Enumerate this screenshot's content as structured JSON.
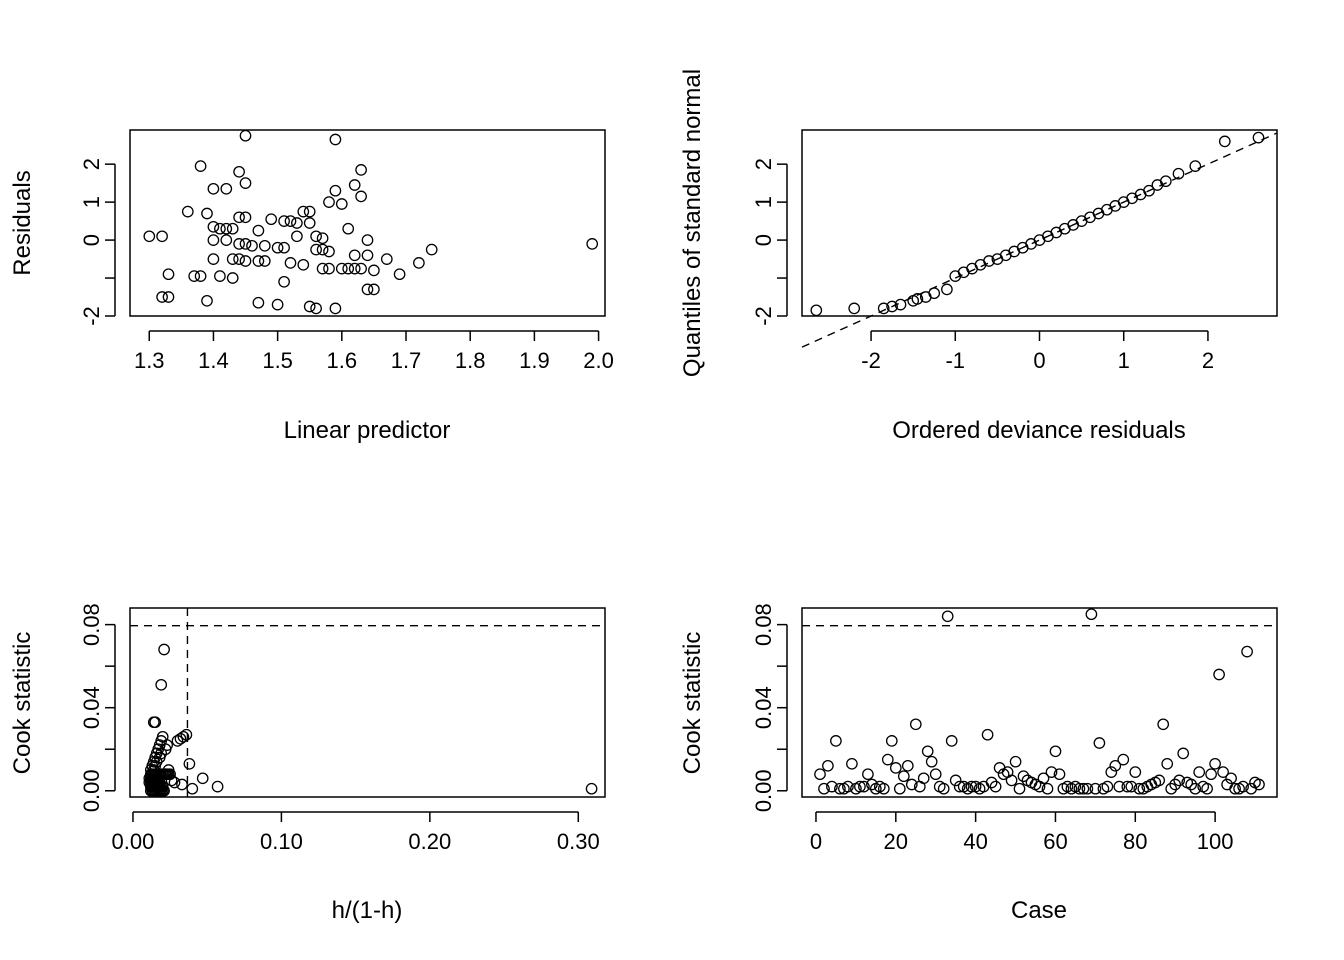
{
  "chart_data": [
    {
      "type": "scatter",
      "title": "",
      "xlabel": "Linear predictor",
      "ylabel": "Residuals",
      "xlim": [
        1.27,
        2.01
      ],
      "ylim": [
        -2.0,
        2.9
      ],
      "xticks": [
        1.3,
        1.4,
        1.5,
        1.6,
        1.7,
        1.8,
        1.9,
        2.0
      ],
      "xtick_labels": [
        "1.3",
        "1.4",
        "1.5",
        "1.6",
        "1.7",
        "1.8",
        "1.9",
        "2.0"
      ],
      "yticks": [
        -2,
        -1,
        0,
        1,
        2
      ],
      "ytick_labels": [
        "-2",
        "",
        "0",
        "1",
        "2"
      ],
      "grid": false,
      "x": [
        1.3,
        1.32,
        1.32,
        1.33,
        1.33,
        1.36,
        1.37,
        1.38,
        1.38,
        1.39,
        1.39,
        1.4,
        1.4,
        1.4,
        1.4,
        1.41,
        1.41,
        1.42,
        1.42,
        1.42,
        1.43,
        1.43,
        1.43,
        1.44,
        1.44,
        1.44,
        1.44,
        1.45,
        1.45,
        1.45,
        1.45,
        1.45,
        1.46,
        1.47,
        1.47,
        1.47,
        1.48,
        1.48,
        1.49,
        1.5,
        1.5,
        1.51,
        1.51,
        1.51,
        1.52,
        1.52,
        1.53,
        1.53,
        1.54,
        1.54,
        1.55,
        1.55,
        1.55,
        1.56,
        1.56,
        1.56,
        1.57,
        1.57,
        1.57,
        1.58,
        1.58,
        1.58,
        1.59,
        1.59,
        1.59,
        1.6,
        1.6,
        1.61,
        1.61,
        1.62,
        1.62,
        1.62,
        1.63,
        1.63,
        1.63,
        1.64,
        1.64,
        1.64,
        1.65,
        1.65,
        1.67,
        1.69,
        1.72,
        1.74,
        1.99
      ],
      "y": [
        0.1,
        0.1,
        -1.5,
        -0.9,
        -1.5,
        0.75,
        -0.95,
        1.95,
        -0.95,
        0.7,
        -1.6,
        1.35,
        0.35,
        0.0,
        -0.5,
        -0.95,
        0.3,
        1.35,
        0.3,
        0.0,
        -1.0,
        0.3,
        -0.5,
        1.8,
        -0.1,
        0.6,
        -0.5,
        2.75,
        1.5,
        0.6,
        -0.1,
        -0.55,
        -0.15,
        0.25,
        -0.55,
        -1.65,
        -0.15,
        -0.55,
        0.55,
        -0.2,
        -1.7,
        0.5,
        -0.2,
        -1.1,
        -0.6,
        0.5,
        0.45,
        0.1,
        0.75,
        -0.65,
        0.75,
        0.45,
        -1.75,
        0.1,
        -0.25,
        -1.8,
        -0.25,
        0.05,
        -0.75,
        1.0,
        -0.3,
        -0.75,
        2.65,
        1.3,
        -1.8,
        0.95,
        -0.75,
        0.3,
        -0.75,
        1.45,
        -0.4,
        -0.75,
        1.85,
        1.15,
        -0.75,
        0.0,
        -0.4,
        -1.3,
        -0.8,
        -1.3,
        -0.5,
        -0.9,
        -0.6,
        -0.25,
        -0.1
      ]
    },
    {
      "type": "scatter",
      "title": "",
      "xlabel": "Ordered deviance residuals",
      "ylabel": "Quantiles of standard normal",
      "xlim": [
        -2.82,
        2.82
      ],
      "ylim": [
        -2.0,
        2.9
      ],
      "xticks": [
        -2,
        -1,
        0,
        1,
        2
      ],
      "xtick_labels": [
        "-2",
        "-1",
        "0",
        "1",
        "2"
      ],
      "yticks": [
        -2,
        -1,
        0,
        1,
        2
      ],
      "ytick_labels": [
        "-2",
        "",
        "0",
        "1",
        "2"
      ],
      "grid": false,
      "reference_line": {
        "style": "dashed",
        "from": [
          -2.82,
          -2.82
        ],
        "to": [
          2.82,
          2.82
        ]
      },
      "x": [
        -2.65,
        -2.2,
        -1.85,
        -1.75,
        -1.65,
        -1.5,
        -1.45,
        -1.35,
        -1.25,
        -1.1,
        -1.0,
        -0.9,
        -0.8,
        -0.7,
        -0.6,
        -0.5,
        -0.4,
        -0.3,
        -0.2,
        -0.1,
        0.0,
        0.1,
        0.2,
        0.3,
        0.4,
        0.5,
        0.6,
        0.7,
        0.8,
        0.9,
        1.0,
        1.1,
        1.2,
        1.3,
        1.4,
        1.5,
        1.65,
        1.85,
        2.2,
        2.6
      ],
      "y": [
        -1.85,
        -1.8,
        -1.8,
        -1.75,
        -1.7,
        -1.6,
        -1.55,
        -1.5,
        -1.4,
        -1.3,
        -0.95,
        -0.85,
        -0.75,
        -0.65,
        -0.55,
        -0.5,
        -0.4,
        -0.3,
        -0.2,
        -0.1,
        0.0,
        0.1,
        0.2,
        0.3,
        0.4,
        0.5,
        0.6,
        0.7,
        0.8,
        0.9,
        1.0,
        1.1,
        1.2,
        1.3,
        1.45,
        1.55,
        1.75,
        1.95,
        2.6,
        2.7
      ]
    },
    {
      "type": "scatter",
      "title": "",
      "xlabel": "h/(1-h)",
      "ylabel": "Cook statistic",
      "xlim": [
        -0.002,
        0.318
      ],
      "ylim": [
        -0.003,
        0.088
      ],
      "xticks": [
        0.0,
        0.1,
        0.2,
        0.3
      ],
      "xtick_labels": [
        "0.00",
        "0.10",
        "0.20",
        "0.30"
      ],
      "yticks": [
        0.0,
        0.04,
        0.08
      ],
      "ytick_labels": [
        "0.00",
        "0.04",
        "0.08"
      ],
      "minor_yticks": [
        0.02,
        0.06
      ],
      "grid": false,
      "hline": 0.0795,
      "vline": 0.0367,
      "x": [
        0.012,
        0.013,
        0.014,
        0.015,
        0.016,
        0.017,
        0.018,
        0.019,
        0.02,
        0.021,
        0.012,
        0.013,
        0.014,
        0.015,
        0.016,
        0.017,
        0.018,
        0.019,
        0.02,
        0.011,
        0.012,
        0.013,
        0.014,
        0.015,
        0.016,
        0.017,
        0.018,
        0.011,
        0.012,
        0.013,
        0.014,
        0.015,
        0.016,
        0.017,
        0.012,
        0.013,
        0.014,
        0.015,
        0.016,
        0.017,
        0.018,
        0.019,
        0.02,
        0.021,
        0.022,
        0.023,
        0.024,
        0.025,
        0.014,
        0.015,
        0.016,
        0.018,
        0.019,
        0.022,
        0.023,
        0.012,
        0.013,
        0.014,
        0.015,
        0.016,
        0.017,
        0.018,
        0.019,
        0.02,
        0.03,
        0.032,
        0.034,
        0.036,
        0.038,
        0.022,
        0.024,
        0.026,
        0.028,
        0.033,
        0.04,
        0.047,
        0.057,
        0.019,
        0.021,
        0.014,
        0.015,
        0.309
      ],
      "y": [
        0.0,
        0.0,
        0.0,
        0.0,
        0.0,
        0.0,
        0.0,
        0.0,
        0.0,
        0.0,
        0.002,
        0.002,
        0.002,
        0.002,
        0.002,
        0.002,
        0.002,
        0.002,
        0.002,
        0.004,
        0.004,
        0.004,
        0.004,
        0.004,
        0.004,
        0.004,
        0.004,
        0.006,
        0.006,
        0.006,
        0.006,
        0.006,
        0.006,
        0.006,
        0.008,
        0.008,
        0.008,
        0.008,
        0.008,
        0.008,
        0.008,
        0.008,
        0.008,
        0.008,
        0.008,
        0.008,
        0.008,
        0.008,
        0.01,
        0.012,
        0.014,
        0.016,
        0.018,
        0.02,
        0.022,
        0.01,
        0.012,
        0.014,
        0.016,
        0.018,
        0.02,
        0.022,
        0.024,
        0.026,
        0.024,
        0.025,
        0.026,
        0.027,
        0.013,
        0.008,
        0.01,
        0.005,
        0.004,
        0.003,
        0.001,
        0.006,
        0.002,
        0.051,
        0.068,
        0.033,
        0.033,
        0.001
      ]
    },
    {
      "type": "scatter",
      "title": "",
      "xlabel": "Case",
      "ylabel": "Cook statistic",
      "xlim": [
        -3.5,
        115.5
      ],
      "ylim": [
        -0.003,
        0.088
      ],
      "xticks": [
        0,
        20,
        40,
        60,
        80,
        100
      ],
      "xtick_labels": [
        "0",
        "20",
        "40",
        "60",
        "80",
        "100"
      ],
      "yticks": [
        0.0,
        0.04,
        0.08
      ],
      "ytick_labels": [
        "0.00",
        "0.04",
        "0.08"
      ],
      "minor_yticks": [
        0.02,
        0.06
      ],
      "grid": false,
      "hline": 0.0795,
      "x": [
        1,
        2,
        3,
        4,
        5,
        6,
        7,
        8,
        9,
        10,
        11,
        12,
        13,
        14,
        15,
        16,
        17,
        18,
        19,
        20,
        21,
        22,
        23,
        24,
        25,
        26,
        27,
        28,
        29,
        30,
        31,
        32,
        33,
        34,
        35,
        36,
        37,
        38,
        39,
        40,
        41,
        42,
        43,
        44,
        45,
        46,
        47,
        48,
        49,
        50,
        51,
        52,
        53,
        54,
        55,
        56,
        57,
        58,
        59,
        60,
        61,
        62,
        63,
        64,
        65,
        66,
        67,
        68,
        69,
        70,
        71,
        72,
        73,
        74,
        75,
        76,
        77,
        78,
        79,
        80,
        81,
        82,
        83,
        84,
        85,
        86,
        87,
        88,
        89,
        90,
        91,
        92,
        93,
        94,
        95,
        96,
        97,
        98,
        99,
        100,
        101,
        102,
        103,
        104,
        105,
        106,
        107,
        108,
        109,
        110,
        111
      ],
      "y": [
        0.008,
        0.001,
        0.012,
        0.002,
        0.024,
        0.001,
        0.001,
        0.002,
        0.013,
        0.001,
        0.002,
        0.002,
        0.008,
        0.003,
        0.001,
        0.002,
        0.001,
        0.015,
        0.024,
        0.011,
        0.001,
        0.007,
        0.012,
        0.003,
        0.032,
        0.002,
        0.006,
        0.019,
        0.014,
        0.008,
        0.002,
        0.001,
        0.084,
        0.024,
        0.005,
        0.002,
        0.002,
        0.001,
        0.002,
        0.002,
        0.001,
        0.002,
        0.027,
        0.004,
        0.002,
        0.011,
        0.008,
        0.009,
        0.005,
        0.014,
        0.001,
        0.007,
        0.005,
        0.004,
        0.003,
        0.002,
        0.006,
        0.001,
        0.009,
        0.019,
        0.008,
        0.001,
        0.002,
        0.001,
        0.002,
        0.001,
        0.001,
        0.001,
        0.085,
        0.001,
        0.023,
        0.001,
        0.002,
        0.009,
        0.012,
        0.002,
        0.015,
        0.002,
        0.002,
        0.009,
        0.001,
        0.001,
        0.002,
        0.003,
        0.004,
        0.005,
        0.032,
        0.013,
        0.001,
        0.003,
        0.005,
        0.018,
        0.004,
        0.003,
        0.001,
        0.009,
        0.002,
        0.001,
        0.008,
        0.013,
        0.056,
        0.009,
        0.003,
        0.006,
        0.001,
        0.001,
        0.002,
        0.067,
        0.001,
        0.004,
        0.003
      ]
    }
  ]
}
